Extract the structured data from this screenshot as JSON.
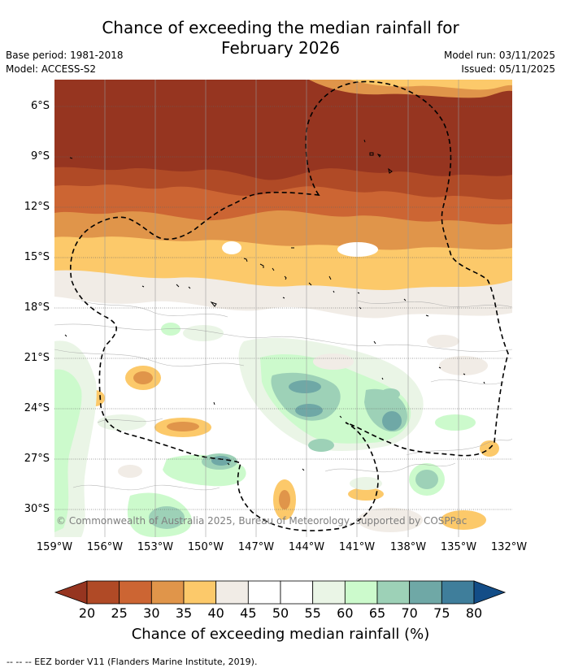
{
  "title": "Chance of exceeding the median rainfall for",
  "title_line2": "February 2026",
  "meta": {
    "base_period": "Base period: 1981-2018",
    "model": "Model: ACCESS-S2",
    "model_run": "Model run: 03/11/2025",
    "issued": "Issued: 05/11/2025"
  },
  "map": {
    "lat_labels": [
      "6°S",
      "9°S",
      "12°S",
      "15°S",
      "18°S",
      "21°S",
      "24°S",
      "27°S",
      "30°S"
    ],
    "lon_labels": [
      "159°W",
      "156°W",
      "153°W",
      "150°W",
      "147°W",
      "144°W",
      "141°W",
      "138°W",
      "135°W",
      "132°W"
    ],
    "copyright": "© Commonwealth of Australia 2025, Bureau of Meteorology, supported by COSPPac"
  },
  "colorbar": {
    "ticks": [
      "20",
      "25",
      "30",
      "35",
      "40",
      "45",
      "50",
      "55",
      "60",
      "65",
      "70",
      "75",
      "80"
    ],
    "colors": [
      "#b04a26",
      "#cc6533",
      "#e0954a",
      "#fcc96a",
      "#f1ece6",
      "#ffffff",
      "#ffffff",
      "#eaf5e6",
      "#ccfacc",
      "#9dd1b7",
      "#6fa8a6",
      "#3f7e9b"
    ],
    "under_color": "#963520",
    "over_color": "#134d87",
    "title": "Chance of exceeding median rainfall (%)"
  },
  "footer": "--  --  -- EEZ border V11 (Flanders Marine Institute, 2019)."
}
